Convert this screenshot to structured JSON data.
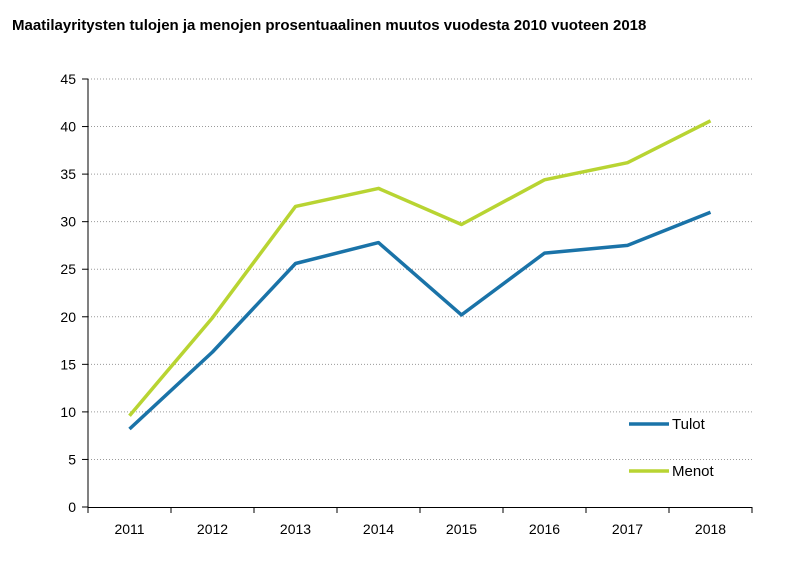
{
  "chart_data": {
    "type": "line",
    "title": "Maatilayritysten tulojen ja menojen prosentuaalinen muutos vuodesta 2010 vuoteen 2018",
    "categories": [
      "2011",
      "2012",
      "2013",
      "2014",
      "2015",
      "2016",
      "2017",
      "2018"
    ],
    "series": [
      {
        "name": "Tulot",
        "color": "#1a73a8",
        "values": [
          8.2,
          16.3,
          25.6,
          27.8,
          20.2,
          26.7,
          27.5,
          31.0
        ]
      },
      {
        "name": "Menot",
        "color": "#b8d432",
        "values": [
          9.6,
          19.9,
          31.6,
          33.5,
          29.7,
          34.4,
          36.2,
          40.6
        ]
      }
    ],
    "ylim": [
      0,
      45
    ],
    "yticks": [
      0,
      5,
      10,
      15,
      20,
      25,
      30,
      35,
      40,
      45
    ],
    "xlabel": "",
    "ylabel": "",
    "grid": "horizontal dotted",
    "legend_position": "bottom-right inside"
  }
}
